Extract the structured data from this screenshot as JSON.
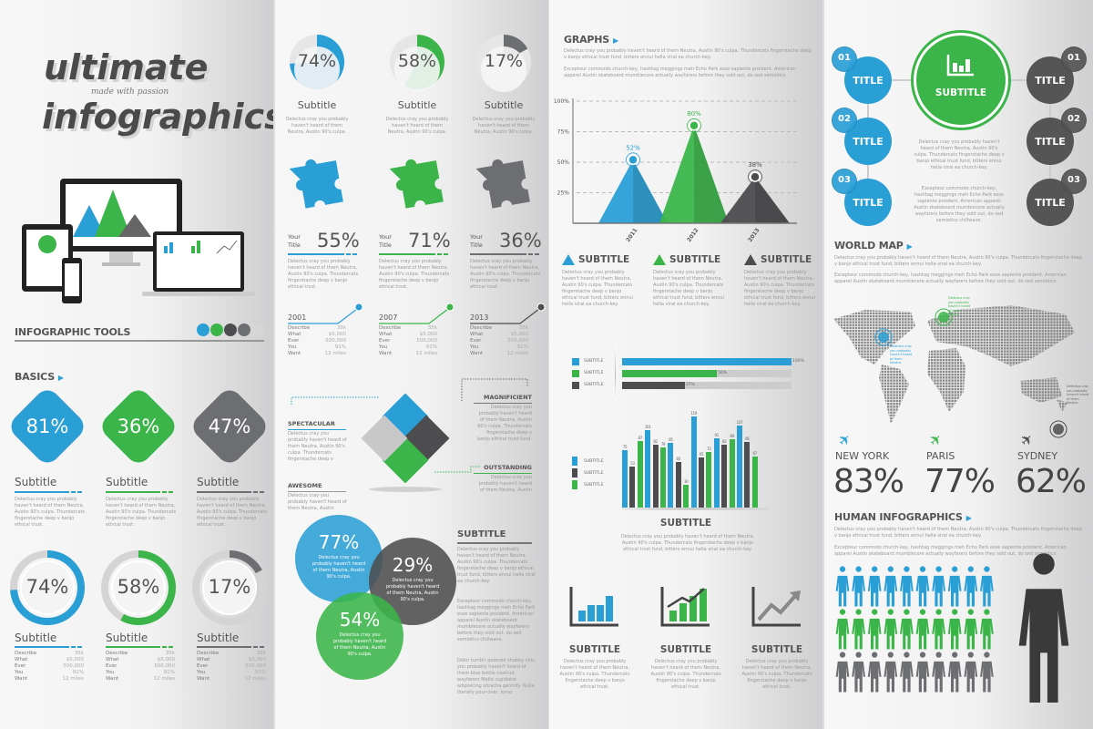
{
  "colors": {
    "blue": "#2a9fd6",
    "green": "#3bb54a",
    "dark": "#4d4d4f",
    "gray": "#6d6e71",
    "light": "#cfcfcf"
  },
  "cover": {
    "title1": "ultimate",
    "tagline": "made with passion",
    "title2": "infographics",
    "tools_heading": "INFOGRAPHIC TOOLS",
    "palette": [
      "#2a9fd6",
      "#3bb54a",
      "#4d4d4f",
      "#6d6e71",
      "#d6d6d6"
    ],
    "basics_heading": "BASICS"
  },
  "lorem": {
    "short": "Delectus cray you probably haven't heard of them Neutra, Austin 90's culpa. Thundercats fingerstache deep v banjo ethical trust.",
    "long1": "Delectus cray you probably haven't heard of them Neutra, Austin 90's culpa. Thundercats fingerstache deep v banjo ethical trust fund, bitters ennui hella viral ea church-key.",
    "long2": "Excepteur commodo church-key, hashtag meggings meh Echo Park esse sapiente proident. American apparel Austin skateboard mumblecore actually wayfarers before they sold out, do sed semiotics",
    "short2": "Delectus cray you probably haven't heard of them Neutra, Austin 90's culpa. Thundercats fingerstache deep v",
    "short3": "Delectus cray you probably haven't heard of them Neutra, Austin",
    "venn": "Delectus cray you probably haven't heard of them Neutra, Austin 90's culpa.",
    "col2long3": "Dolor tumblr polaroid shabby chic, you probably haven't heard of them blue bottle nostrud wayfarers Mafia cupidatat adipisicing sriracha gentrify. Nulla literally pour-over, lomo",
    "center2": "Excepteur commodo church-key, hashtag meggings meh Echo Park esse sapiente proident. American apparel Austin skateboard mumblecore actually wayfarers before they sold out, do sed semiotics chillwave.",
    "mapnote": "Delectus cray you probably haven't heard of them Neutra."
  },
  "basics": {
    "diamonds": [
      {
        "value": "81%",
        "color": "blue"
      },
      {
        "value": "36%",
        "color": "green"
      },
      {
        "value": "47%",
        "color": "gray"
      }
    ],
    "diamond_subtitle": "Subtitle",
    "donuts": [
      {
        "label": "74%",
        "value": 74,
        "color": "blue"
      },
      {
        "label": "58%",
        "value": 58,
        "color": "green"
      },
      {
        "label": "17%",
        "value": 17,
        "color": "gray"
      }
    ],
    "donut_subtitle": "Subtitle",
    "table": [
      [
        "Describe",
        "35k"
      ],
      [
        "What",
        "$5,000"
      ],
      [
        "Ever",
        "500,000"
      ],
      [
        "You",
        "91%"
      ],
      [
        "Want",
        "12 miles"
      ]
    ]
  },
  "col2": {
    "pies": [
      {
        "label": "74%",
        "value": 74,
        "color": "blue"
      },
      {
        "label": "58%",
        "value": 58,
        "color": "green"
      },
      {
        "label": "17%",
        "value": 17,
        "color": "gray"
      }
    ],
    "pie_subtitle": "Subtitle",
    "your_title": "Your Title",
    "stats": [
      {
        "value": "55%",
        "color": "blue"
      },
      {
        "value": "71%",
        "color": "green"
      },
      {
        "value": "36%",
        "color": "gray"
      }
    ],
    "timeline": [
      {
        "year": "2001",
        "color": "blue"
      },
      {
        "year": "2007",
        "color": "green"
      },
      {
        "year": "2013",
        "color": "dark"
      }
    ],
    "puzzle_labels": {
      "spectacular": "SPECTACULAR",
      "awesome": "AWESOME",
      "magnificient": "MAGNIFICIENT",
      "outstanding": "OUTSTANDING"
    },
    "venn": [
      {
        "value": "77%",
        "color": "blue"
      },
      {
        "value": "29%",
        "color": "dark"
      },
      {
        "value": "54%",
        "color": "green"
      }
    ],
    "subtitle": "SUBTITLE"
  },
  "graphs": {
    "heading": "GRAPHS",
    "triangle_labels": [
      "SUBTITLE",
      "SUBTITLE",
      "SUBTITLE"
    ],
    "hbar_legend": "SUBTITLE",
    "col_legend": "SUBTITLE",
    "col_title": "SUBTITLE",
    "icon_labels": [
      "SUBTITLE",
      "SUBTITLE",
      "SUBTITLE"
    ]
  },
  "chart_data": [
    {
      "type": "area",
      "categories": [
        "2011",
        "2012",
        "2013"
      ],
      "values": [
        52,
        80,
        38
      ],
      "data_labels": [
        "52%",
        "80%",
        "38%"
      ],
      "colors": [
        "blue",
        "green",
        "dark"
      ],
      "yticks": [
        "100%",
        "75%",
        "50%",
        "25%"
      ],
      "ylim": [
        0,
        100
      ],
      "grid": true
    },
    {
      "type": "bar",
      "orientation": "horizontal",
      "series": [
        {
          "name": "SUBTITLE",
          "values": [
            100
          ]
        },
        {
          "name": "SUBTITLE",
          "values": [
            56
          ]
        },
        {
          "name": "SUBTITLE",
          "values": [
            37
          ]
        }
      ],
      "data_labels": [
        "100%",
        "56%",
        "37%"
      ],
      "colors": [
        "blue",
        "green",
        "dark"
      ],
      "xlim": [
        0,
        100
      ]
    },
    {
      "type": "bar",
      "values": [
        75,
        53,
        87,
        101,
        82,
        79,
        85,
        60,
        30,
        119,
        65,
        72,
        91,
        82,
        89,
        107,
        86,
        67
      ],
      "color_cycle": [
        "blue",
        "dark",
        "green"
      ],
      "legend": [
        "SUBTITLE",
        "SUBTITLE",
        "SUBTITLE"
      ],
      "ylim": [
        0,
        125
      ]
    }
  ],
  "sidebar4": {
    "left": [
      {
        "num": "01",
        "label": "TITLE"
      },
      {
        "num": "02",
        "label": "TITLE"
      },
      {
        "num": "03",
        "label": "TITLE"
      }
    ],
    "center": "SUBTITLE",
    "right": [
      {
        "num": "01",
        "label": "TITLE"
      },
      {
        "num": "02",
        "label": "TITLE"
      },
      {
        "num": "03",
        "label": "TITLE"
      }
    ],
    "world_heading": "WORLD MAP",
    "cities": [
      {
        "name": "NEW YORK",
        "value": "83%",
        "color": "blue"
      },
      {
        "name": "PARIS",
        "value": "77%",
        "color": "green"
      },
      {
        "name": "SYDNEY",
        "value": "62%",
        "color": "dark"
      }
    ],
    "human_heading": "HUMAN INFOGRAPHICS",
    "people_rows": [
      {
        "color": "blue",
        "count": 10
      },
      {
        "color": "green",
        "count": 10
      },
      {
        "color": "gray",
        "count": 10
      }
    ]
  }
}
